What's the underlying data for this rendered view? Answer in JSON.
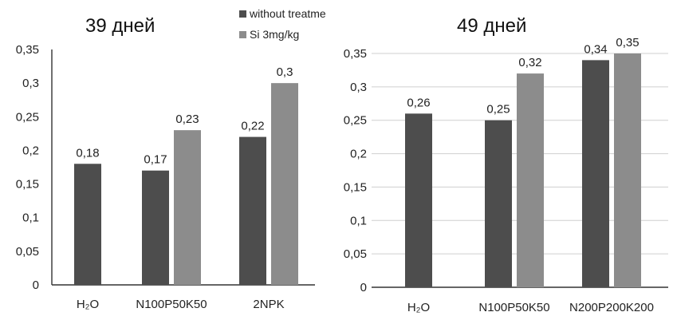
{
  "chart_data": [
    {
      "type": "bar",
      "title": "39 дней",
      "categories": [
        "H₂O",
        "N100P50K50",
        "2NPK"
      ],
      "ylim": [
        0,
        0.35
      ],
      "yticks": [
        "0",
        "0,05",
        "0,1",
        "0,15",
        "0,2",
        "0,25",
        "0,3",
        "0,35"
      ],
      "grid": false,
      "legend": "top-center",
      "series": [
        {
          "name": "without treatme",
          "color": "#4d4d4d",
          "values": [
            0.18,
            0.17,
            0.22
          ],
          "labels": [
            "0,18",
            "0,17",
            "0,22"
          ]
        },
        {
          "name": "Si 3mg/kg",
          "color": "#8c8c8c",
          "values": [
            null,
            0.23,
            0.3
          ],
          "labels": [
            "",
            "0,23",
            "0,3"
          ]
        }
      ]
    },
    {
      "type": "bar",
      "title": "49 дней",
      "categories": [
        "H₂O",
        "N100P50K50",
        "N200P200K200"
      ],
      "ylim": [
        0,
        0.35
      ],
      "yticks": [
        "0",
        "0,05",
        "0,1",
        "0,15",
        "0,2",
        "0,25",
        "0,3",
        "0,35"
      ],
      "grid": true,
      "series": [
        {
          "name": "without treatme",
          "color": "#4d4d4d",
          "values": [
            0.26,
            0.25,
            0.34
          ],
          "labels": [
            "0,26",
            "0,25",
            "0,34"
          ]
        },
        {
          "name": "Si 3mg/kg",
          "color": "#8c8c8c",
          "values": [
            null,
            0.32,
            0.35
          ],
          "labels": [
            "",
            "0,32",
            "0,35"
          ]
        }
      ]
    }
  ]
}
